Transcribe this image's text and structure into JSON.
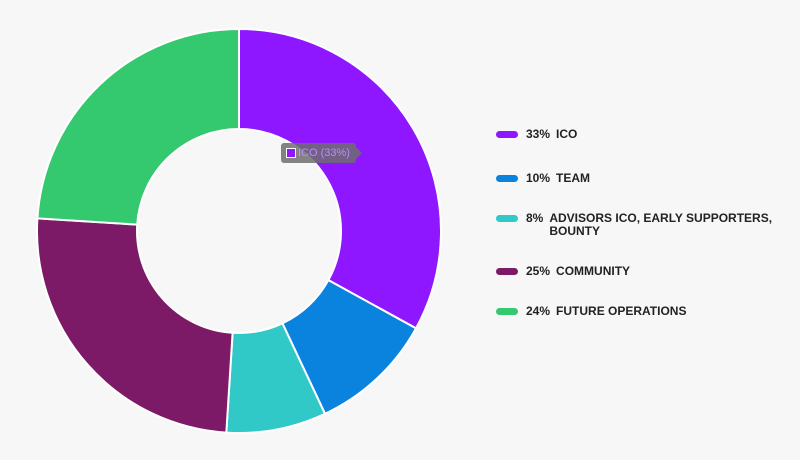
{
  "chart_data": {
    "type": "pie",
    "donut": true,
    "title": "",
    "slices": [
      {
        "label": "ICO",
        "value": 33,
        "percent_label": "33%",
        "color": "#8e17ff"
      },
      {
        "label": "TEAM",
        "value": 10,
        "percent_label": "10%",
        "color": "#0a83df"
      },
      {
        "label": "ADVISORS ICO, EARLY SUPPORTERS, BOUNTY",
        "value": 8,
        "percent_label": "8%",
        "color": "#31c8c8"
      },
      {
        "label": "COMMUNITY",
        "value": 25,
        "percent_label": "25%",
        "color": "#7d1a68"
      },
      {
        "label": "FUTURE OPERATIONS",
        "value": 24,
        "percent_label": "24%",
        "color": "#34c86f"
      }
    ],
    "legend_position": "right"
  },
  "tooltip": {
    "text": "ICO (33%)",
    "color": "#8e17ff"
  },
  "background_color": "#f7f7f7"
}
